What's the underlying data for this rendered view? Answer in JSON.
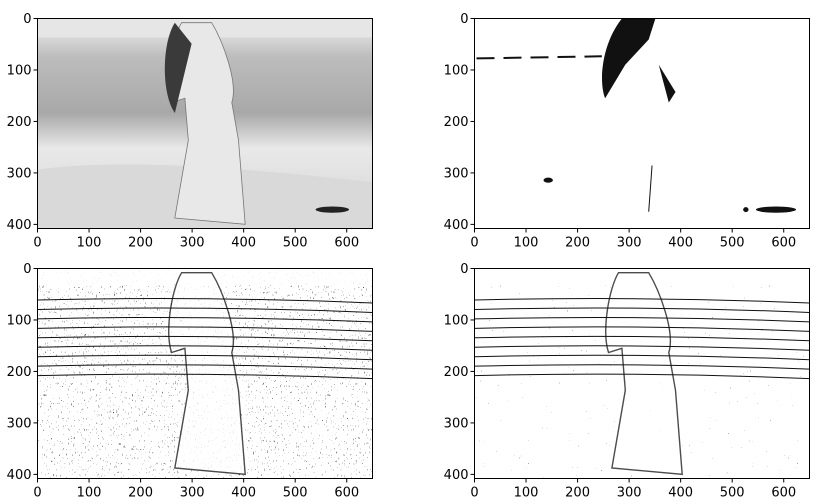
{
  "chart_data": [
    {
      "type": "image",
      "panel": "top-left",
      "image_description": "grayscale",
      "xlim": [
        0,
        650
      ],
      "ylim": [
        408,
        0
      ],
      "x_ticks": [
        0,
        100,
        200,
        300,
        400,
        500,
        600
      ],
      "y_ticks": [
        0,
        100,
        200,
        300,
        400
      ],
      "x_tick_labels": [
        "0",
        "100",
        "200",
        "300",
        "400",
        "500",
        "600"
      ],
      "y_tick_labels": [
        "0",
        "100",
        "200",
        "300",
        "400"
      ]
    },
    {
      "type": "image",
      "panel": "top-right",
      "image_description": "binary threshold",
      "xlim": [
        0,
        650
      ],
      "ylim": [
        408,
        0
      ],
      "x_ticks": [
        0,
        100,
        200,
        300,
        400,
        500,
        600
      ],
      "y_ticks": [
        0,
        100,
        200,
        300,
        400
      ],
      "x_tick_labels": [
        "0",
        "100",
        "200",
        "300",
        "400",
        "500",
        "600"
      ],
      "y_tick_labels": [
        "0",
        "100",
        "200",
        "300",
        "400"
      ]
    },
    {
      "type": "image",
      "panel": "bottom-left",
      "image_description": "adaptive threshold (mean)",
      "xlim": [
        0,
        650
      ],
      "ylim": [
        408,
        0
      ],
      "x_ticks": [
        0,
        100,
        200,
        300,
        400,
        500,
        600
      ],
      "y_ticks": [
        0,
        100,
        200,
        300,
        400
      ],
      "x_tick_labels": [
        "0",
        "100",
        "200",
        "300",
        "400",
        "500",
        "600"
      ],
      "y_tick_labels": [
        "0",
        "100",
        "200",
        "300",
        "400"
      ]
    },
    {
      "type": "image",
      "panel": "bottom-right",
      "image_description": "adaptive threshold (gaussian)",
      "xlim": [
        0,
        650
      ],
      "ylim": [
        408,
        0
      ],
      "x_ticks": [
        0,
        100,
        200,
        300,
        400,
        500,
        600
      ],
      "y_ticks": [
        0,
        100,
        200,
        300,
        400
      ],
      "x_tick_labels": [
        "0",
        "100",
        "200",
        "300",
        "400",
        "500",
        "600"
      ],
      "y_tick_labels": [
        "0",
        "100",
        "200",
        "300",
        "400"
      ]
    }
  ],
  "colors": {
    "axis": "#000000",
    "background": "#ffffff",
    "ink": "#111111",
    "gray_sky": "#e6e6e6",
    "gray_sea": "#b8b8b8",
    "gray_sand": "#d9d9d9"
  }
}
